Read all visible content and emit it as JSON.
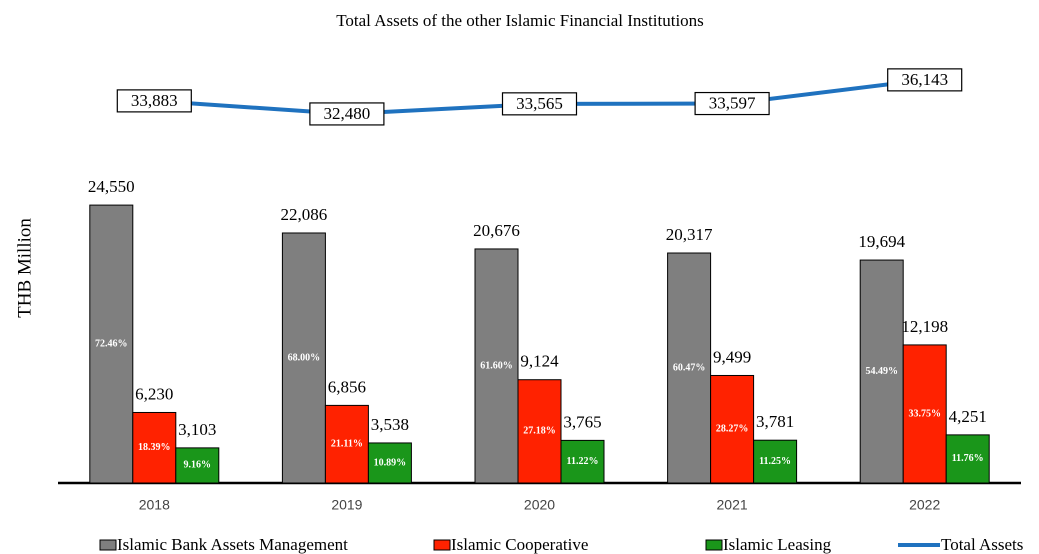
{
  "chart_data": {
    "type": "bar",
    "title": "Total Assets of the other Islamic Financial Institutions",
    "y_label": "THB Million",
    "categories": [
      "2018",
      "2019",
      "2020",
      "2021",
      "2022"
    ],
    "ylim": [
      0,
      25000
    ],
    "y2lim": [
      30000,
      40000
    ],
    "series": [
      {
        "name": "Islamic Bank Assets Management",
        "color": "#7f7f7f",
        "values": [
          24550,
          22086,
          20676,
          20317,
          19694
        ],
        "value_labels": [
          "24,550",
          "22,086",
          "20,676",
          "20,317",
          "19,694"
        ],
        "share_labels": [
          "72.46%",
          "68.00%",
          "61.60%",
          "60.47%",
          "54.49%"
        ]
      },
      {
        "name": "Islamic Cooperative",
        "color": "#ff2200",
        "values": [
          6230,
          6856,
          9124,
          9499,
          12198
        ],
        "value_labels": [
          "6,230",
          "6,856",
          "9,124",
          "9,499",
          "12,198"
        ],
        "share_labels": [
          "18.39%",
          "21.11%",
          "27.18%",
          "28.27%",
          "33.75%"
        ]
      },
      {
        "name": "Islamic Leasing",
        "color": "#1a961a",
        "values": [
          3103,
          3538,
          3765,
          3781,
          4251
        ],
        "value_labels": [
          "3,103",
          "3,538",
          "3,765",
          "3,781",
          "4,251"
        ],
        "share_labels": [
          "9.16%",
          "10.89%",
          "11.22%",
          "11.25%",
          "11.76%"
        ]
      },
      {
        "name": "Total Assets",
        "color": "#1f72bf",
        "type": "line",
        "axis": "y2",
        "values": [
          33883,
          32480,
          33565,
          33597,
          36143
        ],
        "value_labels": [
          "33,883",
          "32,480",
          "33,565",
          "33,597",
          "36,143"
        ]
      }
    ]
  }
}
